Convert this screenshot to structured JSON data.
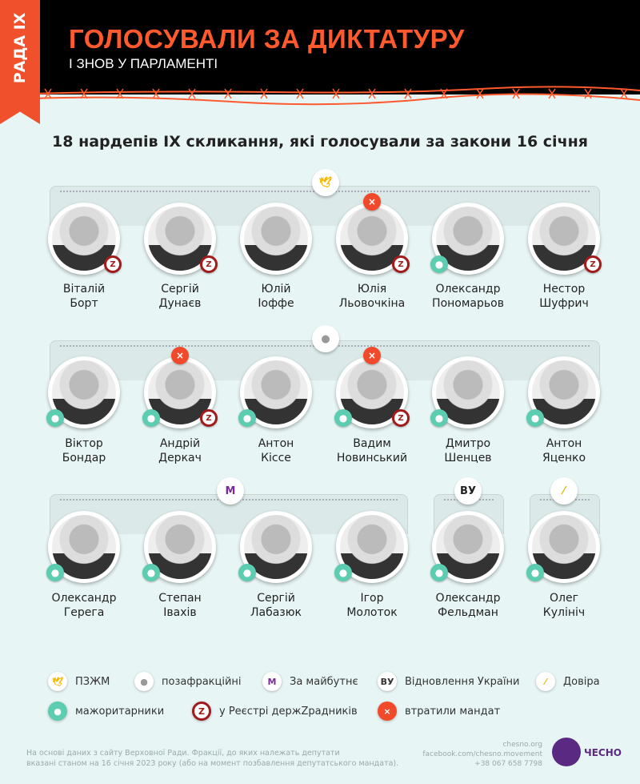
{
  "header": {
    "tab": "РАДА IX",
    "title": "ГОЛОСУВАЛИ ЗА ДИКТАТУРУ",
    "subtitle": "І ЗНОВ У ПАРЛАМЕНТІ"
  },
  "heading": "18 нардепів IX скликання, які голосували за закони 16 січня",
  "colors": {
    "accent": "#ff5a2e",
    "background": "#e8f5f5",
    "header": "#000000",
    "logo": "#5a2a82"
  },
  "groups": [
    {
      "faction": "ПЗЖМ",
      "icon": "pzzhm-icon"
    },
    {
      "faction": "позафракційні",
      "icon": "person-icon"
    },
    {
      "faction": "За майбутнє",
      "icon": "m-icon"
    },
    {
      "faction": "Відновлення України",
      "icon": "vu-icon",
      "label": "ВУ"
    },
    {
      "faction": "Довіра",
      "icon": "dovira-icon"
    }
  ],
  "deputies": [
    {
      "first": "Віталій",
      "last": "Борт",
      "faction": "ПЗЖМ",
      "z": true
    },
    {
      "first": "Сергій",
      "last": "Дунаєв",
      "faction": "ПЗЖМ",
      "z": true
    },
    {
      "first": "Юлій",
      "last": "Іоффе",
      "faction": "ПЗЖМ"
    },
    {
      "first": "Юлія",
      "last": "Льовочкіна",
      "faction": "ПЗЖМ",
      "z": true,
      "lost": true
    },
    {
      "first": "Олександр",
      "last": "Пономарьов",
      "faction": "ПЗЖМ",
      "maj": true
    },
    {
      "first": "Нестор",
      "last": "Шуфрич",
      "faction": "ПЗЖМ",
      "z": true
    },
    {
      "first": "Віктор",
      "last": "Бондар",
      "faction": "позафракційні",
      "maj": true
    },
    {
      "first": "Андрій",
      "last": "Деркач",
      "faction": "позафракційні",
      "maj": true,
      "z": true,
      "lost": true
    },
    {
      "first": "Антон",
      "last": "Кіссе",
      "faction": "позафракційні",
      "maj": true
    },
    {
      "first": "Вадим",
      "last": "Новинський",
      "faction": "позафракційні",
      "maj": true,
      "z": true,
      "lost": true
    },
    {
      "first": "Дмитро",
      "last": "Шенцев",
      "faction": "позафракційні",
      "maj": true
    },
    {
      "first": "Антон",
      "last": "Яценко",
      "faction": "позафракційні",
      "maj": true
    },
    {
      "first": "Олександр",
      "last": "Герега",
      "faction": "За майбутнє",
      "maj": true
    },
    {
      "first": "Степан",
      "last": "Івахів",
      "faction": "За майбутнє",
      "maj": true
    },
    {
      "first": "Сергій",
      "last": "Лабазюк",
      "faction": "За майбутнє",
      "maj": true
    },
    {
      "first": "Ігор",
      "last": "Молоток",
      "faction": "За майбутнє",
      "maj": true
    },
    {
      "first": "Олександр",
      "last": "Фельдман",
      "faction": "Відновлення України",
      "maj": true
    },
    {
      "first": "Олег",
      "last": "Кулініч",
      "faction": "Довіра",
      "maj": true
    }
  ],
  "legend": [
    {
      "label": "ПЗЖМ",
      "icon": "pzzhm-icon"
    },
    {
      "label": "позафракційні",
      "icon": "person-icon"
    },
    {
      "label": "За майбутнє",
      "icon": "m-icon"
    },
    {
      "label": "Відновлення України",
      "icon": "vu-icon",
      "glyph": "ВУ"
    },
    {
      "label": "Довіра",
      "icon": "dovira-icon"
    },
    {
      "label": "мажоритарники",
      "icon": "pin-icon"
    },
    {
      "label": "у Реєстрі держZрадників",
      "icon": "z-icon",
      "glyph": "Z"
    },
    {
      "label": "втратили мандат",
      "icon": "x-icon",
      "glyph": "×"
    }
  ],
  "footer": {
    "note_line1": "На основі даних з сайту Верховної Ради. Фракції, до яких належать депутати",
    "note_line2": "вказані станом на 16 січня 2023 року (або на момент позбавлення депутатського мандата).",
    "site": "chesno.org",
    "facebook": "facebook.com/chesno.movement",
    "phone": "+38 067 658 7798",
    "logo": "ЧЕСНО"
  }
}
